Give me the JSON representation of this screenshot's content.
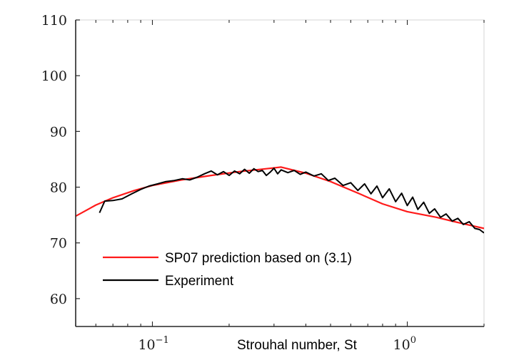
{
  "chart_data": {
    "type": "line",
    "title": "",
    "xlabel": "Strouhal number,  St",
    "ylabel": "",
    "xscale": "log",
    "xlim": [
      0.05,
      2.0
    ],
    "ylim": [
      55,
      110
    ],
    "yticks": [
      60,
      70,
      80,
      90,
      100,
      110
    ],
    "ytick_labels": [
      "60",
      "70",
      "80",
      "90",
      "100",
      "110"
    ],
    "xticks": [
      {
        "value": 0.1,
        "base": "10",
        "exp": "−1"
      },
      {
        "value": 1.0,
        "base": "10",
        "exp": "0"
      }
    ],
    "legend_position": "lower-left",
    "series": [
      {
        "name": "SP07 prediction based on (3.1)",
        "color": "#ff1a1a",
        "x": [
          0.05,
          0.06,
          0.07,
          0.085,
          0.1,
          0.13,
          0.17,
          0.22,
          0.28,
          0.32,
          0.4,
          0.5,
          0.65,
          0.8,
          1.0,
          1.3,
          1.6,
          2.0
        ],
        "y": [
          74.8,
          76.8,
          78.1,
          79.4,
          80.3,
          81.3,
          82.1,
          82.8,
          83.3,
          83.6,
          82.5,
          81.0,
          78.8,
          77.0,
          75.6,
          74.6,
          73.6,
          72.6
        ]
      },
      {
        "name": "Experiment",
        "color": "#000000",
        "x": [
          0.062,
          0.065,
          0.07,
          0.076,
          0.083,
          0.09,
          0.097,
          0.105,
          0.113,
          0.122,
          0.131,
          0.14,
          0.15,
          0.16,
          0.17,
          0.18,
          0.19,
          0.2,
          0.21,
          0.22,
          0.23,
          0.24,
          0.25,
          0.26,
          0.27,
          0.28,
          0.29,
          0.3,
          0.31,
          0.32,
          0.34,
          0.36,
          0.38,
          0.4,
          0.43,
          0.46,
          0.49,
          0.52,
          0.56,
          0.6,
          0.64,
          0.68,
          0.72,
          0.76,
          0.8,
          0.85,
          0.9,
          0.95,
          1.0,
          1.05,
          1.1,
          1.16,
          1.22,
          1.28,
          1.35,
          1.42,
          1.5,
          1.58,
          1.66,
          1.75,
          1.84,
          1.92,
          2.0
        ],
        "y": [
          75.4,
          77.5,
          77.6,
          77.9,
          78.8,
          79.6,
          80.2,
          80.6,
          81.0,
          81.2,
          81.5,
          81.3,
          81.8,
          82.4,
          82.9,
          82.2,
          82.8,
          82.1,
          82.9,
          82.4,
          83.2,
          82.5,
          83.3,
          82.8,
          83.0,
          82.1,
          82.7,
          83.4,
          82.4,
          83.1,
          82.6,
          83.0,
          82.3,
          82.7,
          82.0,
          82.4,
          81.2,
          81.6,
          80.3,
          80.8,
          79.4,
          80.6,
          78.8,
          80.2,
          78.1,
          79.7,
          77.4,
          78.9,
          76.7,
          78.2,
          76.0,
          77.3,
          75.3,
          76.1,
          74.6,
          75.2,
          73.9,
          74.4,
          73.3,
          73.8,
          72.6,
          72.4,
          71.8
        ]
      }
    ]
  }
}
